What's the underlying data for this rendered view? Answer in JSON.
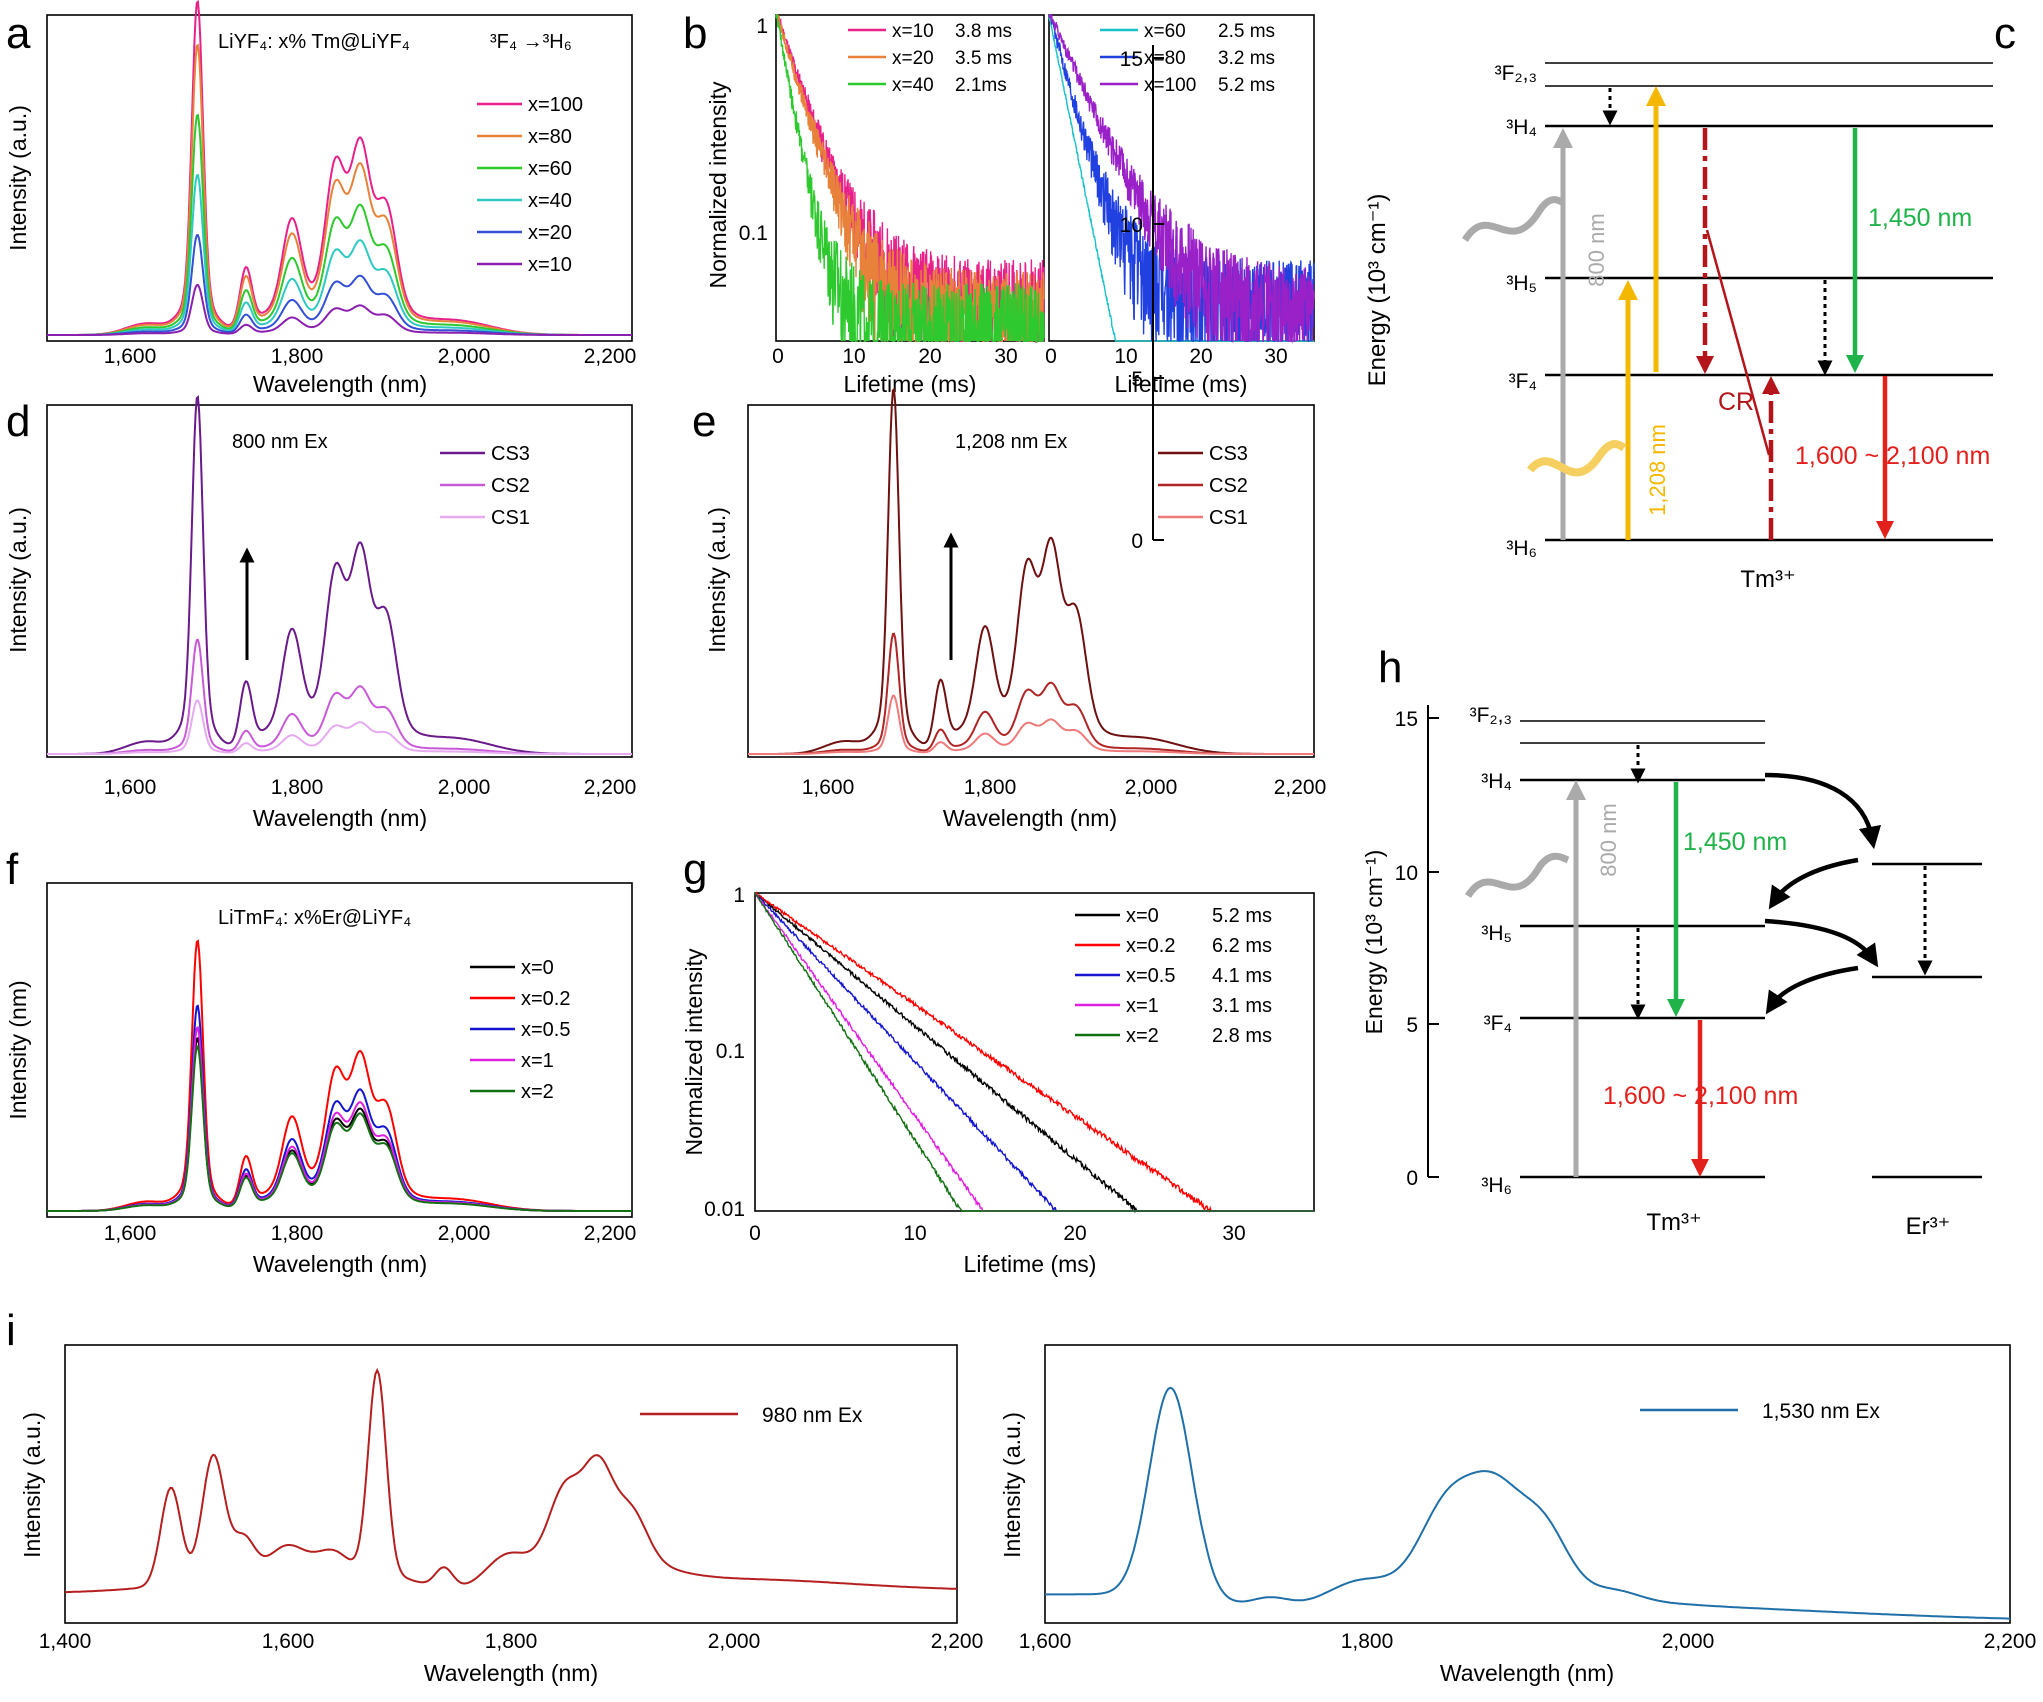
{
  "panels": {
    "a": {
      "letter": "a",
      "annotation": "LiYF₄: x% Tm@LiYF₄",
      "transition": "³F₄ →³H₆",
      "xlabel": "Wavelength (nm)",
      "ylabel": "Intensity (a.u.)",
      "xticks": [
        "1,600",
        "1,800",
        "2,000",
        "2,200"
      ]
    },
    "b": {
      "letter": "b",
      "xlabel": "Lifetime (ms)",
      "ylabel": "Normalized intensity",
      "yticks": [
        "1",
        "0.1"
      ],
      "xticks": [
        "0",
        "10",
        "20",
        "30"
      ]
    },
    "c": {
      "letter": "c",
      "ylabel": "Energy (10³ cm⁻¹)",
      "yticks": [
        "0",
        "5",
        "10",
        "15"
      ],
      "ion": "Tm³⁺",
      "levels": [
        "³F₂,₃",
        "³H₄",
        "³H₅",
        "³F₄",
        "³H₆"
      ],
      "labels": {
        "ex800": "800 nm",
        "ex1208": "1,208 nm",
        "em1450": "1,450 nm",
        "cr": "CR",
        "em_range": "1,600 ~ 2,100 nm"
      }
    },
    "d": {
      "letter": "d",
      "annotation": "800 nm Ex",
      "xlabel": "Wavelength (nm)",
      "ylabel": "Intensity (a.u.)",
      "xticks": [
        "1,600",
        "1,800",
        "2,000",
        "2,200"
      ]
    },
    "e": {
      "letter": "e",
      "annotation": "1,208 nm Ex",
      "xlabel": "Wavelength (nm)",
      "ylabel": "Intensity (a.u.)",
      "xticks": [
        "1,600",
        "1,800",
        "2,000",
        "2,200"
      ]
    },
    "f": {
      "letter": "f",
      "annotation": "LiTmF₄: x%Er@LiYF₄",
      "xlabel": "Wavelength (nm)",
      "ylabel": "Intensity (nm)",
      "xticks": [
        "1,600",
        "1,800",
        "2,000",
        "2,200"
      ]
    },
    "g": {
      "letter": "g",
      "xlabel": "Lifetime (ms)",
      "ylabel": "Normalized intensity",
      "yticks": [
        "1",
        "0.1",
        "0.01"
      ],
      "xticks": [
        "0",
        "10",
        "20",
        "30"
      ]
    },
    "h": {
      "letter": "h",
      "ylabel": "Energy (10³ cm⁻¹)",
      "yticks": [
        "0",
        "5",
        "10",
        "15"
      ],
      "ion1": "Tm³⁺",
      "ion2": "Er³⁺",
      "levels": [
        "³F₂,₃",
        "³H₄",
        "³H₅",
        "³F₄",
        "³H₆"
      ],
      "labels": {
        "ex800": "800 nm",
        "em1450": "1,450 nm",
        "em_range": "1,600 ~ 2,100 nm"
      }
    },
    "i": {
      "letter": "i",
      "xlabel": "Wavelength (nm)",
      "ylabel": "Intensity (a.u.)",
      "xticks_left": [
        "1,400",
        "1,600",
        "1,800",
        "2,000",
        "2,200"
      ],
      "xticks_right": [
        "1,600",
        "1,800",
        "2,000",
        "2,200"
      ]
    }
  },
  "chart_data": [
    {
      "id": "a",
      "type": "line",
      "xlim": [
        1500,
        2200
      ],
      "ylim": [
        0,
        1
      ],
      "series": [
        {
          "name": "x=100",
          "color": "#e8208a",
          "scale": 1.0
        },
        {
          "name": "x=80",
          "color": "#e8823a",
          "scale": 0.87
        },
        {
          "name": "x=60",
          "color": "#2ec92e",
          "scale": 0.66
        },
        {
          "name": "x=40",
          "color": "#2ec9c0",
          "scale": 0.48
        },
        {
          "name": "x=20",
          "color": "#3350d6",
          "scale": 0.3
        },
        {
          "name": "x=10",
          "color": "#8a1fb0",
          "scale": 0.15
        }
      ]
    },
    {
      "id": "b",
      "type": "line",
      "yscale": "log",
      "xlim": [
        0,
        35
      ],
      "ylim": [
        0.03,
        1
      ],
      "series": [
        {
          "name": "x=10",
          "lifetime": "3.8 ms",
          "color": "#e8208a"
        },
        {
          "name": "x=20",
          "lifetime": "3.5 ms",
          "color": "#e8823a"
        },
        {
          "name": "x=40",
          "lifetime": "2.1ms",
          "color": "#2ec92e"
        },
        {
          "name": "x=60",
          "lifetime": "2.5 ms",
          "color": "#19c2c9"
        },
        {
          "name": "x=80",
          "lifetime": "3.2 ms",
          "color": "#2040e0"
        },
        {
          "name": "x=100",
          "lifetime": "5.2 ms",
          "color": "#9a20c8"
        }
      ]
    },
    {
      "id": "d",
      "type": "line",
      "xlim": [
        1500,
        2200
      ],
      "series": [
        {
          "name": "CS3",
          "color": "#6a1a8a",
          "scale": 1.0
        },
        {
          "name": "CS2",
          "color": "#c85ad8",
          "scale": 0.32
        },
        {
          "name": "CS1",
          "color": "#e6aaf0",
          "scale": 0.15
        }
      ]
    },
    {
      "id": "e",
      "type": "line",
      "xlim": [
        1500,
        2200
      ],
      "series": [
        {
          "name": "CS3",
          "color": "#6e1010",
          "scale": 1.0
        },
        {
          "name": "CS2",
          "color": "#b02525",
          "scale": 0.33
        },
        {
          "name": "CS1",
          "color": "#ee7a7a",
          "scale": 0.16
        }
      ]
    },
    {
      "id": "f",
      "type": "line",
      "xlim": [
        1500,
        2200
      ],
      "series": [
        {
          "name": "x=0",
          "color": "#000000",
          "scale": 0.64
        },
        {
          "name": "x=0.2",
          "color": "#ff0000",
          "scale": 1.0
        },
        {
          "name": "x=0.5",
          "color": "#1515d0",
          "scale": 0.76
        },
        {
          "name": "x=1",
          "color": "#e020e0",
          "scale": 0.68
        },
        {
          "name": "x=2",
          "color": "#127012",
          "scale": 0.61
        }
      ]
    },
    {
      "id": "g",
      "type": "line",
      "yscale": "log",
      "xlim": [
        0,
        35
      ],
      "ylim": [
        0.01,
        1
      ],
      "series": [
        {
          "name": "x=0",
          "lifetime": "5.2 ms",
          "color": "#000000"
        },
        {
          "name": "x=0.2",
          "lifetime": "6.2 ms",
          "color": "#ff0000"
        },
        {
          "name": "x=0.5",
          "lifetime": "4.1 ms",
          "color": "#1515d0"
        },
        {
          "name": "x=1",
          "lifetime": "3.1 ms",
          "color": "#e020e0"
        },
        {
          "name": "x=2",
          "lifetime": "2.8 ms",
          "color": "#127012"
        }
      ]
    },
    {
      "id": "i-left",
      "type": "line",
      "xlim": [
        1400,
        2200
      ],
      "series": [
        {
          "name": "980 nm Ex",
          "color": "#b51f1f"
        }
      ]
    },
    {
      "id": "i-right",
      "type": "line",
      "xlim": [
        1600,
        2200
      ],
      "series": [
        {
          "name": "1,530 nm Ex",
          "color": "#1f6fa8"
        }
      ]
    }
  ]
}
